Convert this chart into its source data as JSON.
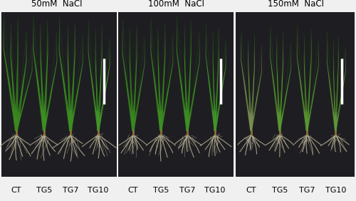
{
  "panel_titles": [
    "50mM  NaCl",
    "100mM  NaCl",
    "150mM  NaCl"
  ],
  "bottom_labels": [
    [
      "CT",
      "TG5",
      "TG7",
      "TG10"
    ],
    [
      "CT",
      "TG5",
      "TG7",
      "TG10"
    ],
    [
      "CT",
      "TG5",
      "TG7",
      "TG10"
    ]
  ],
  "bg_color": "#1e1e22",
  "outer_bg": "#f0f0f0",
  "panel_title_fontsize": 8.5,
  "label_fontsize": 8,
  "fig_width": 5.0,
  "fig_height": 2.82,
  "dpi": 100,
  "leaf_greens": [
    "#3a8a20",
    "#3a9020",
    "#3a9020",
    "#4a9828"
  ],
  "leaf_greens_100": [
    "#3a8820",
    "#3a9020",
    "#3a9020",
    "#4a9828"
  ],
  "leaf_greens_150": [
    "#889858",
    "#6a9840",
    "#6a9840",
    "#70a040"
  ],
  "root_color": "#b8b090",
  "scale_bar_color": "#ffffff"
}
